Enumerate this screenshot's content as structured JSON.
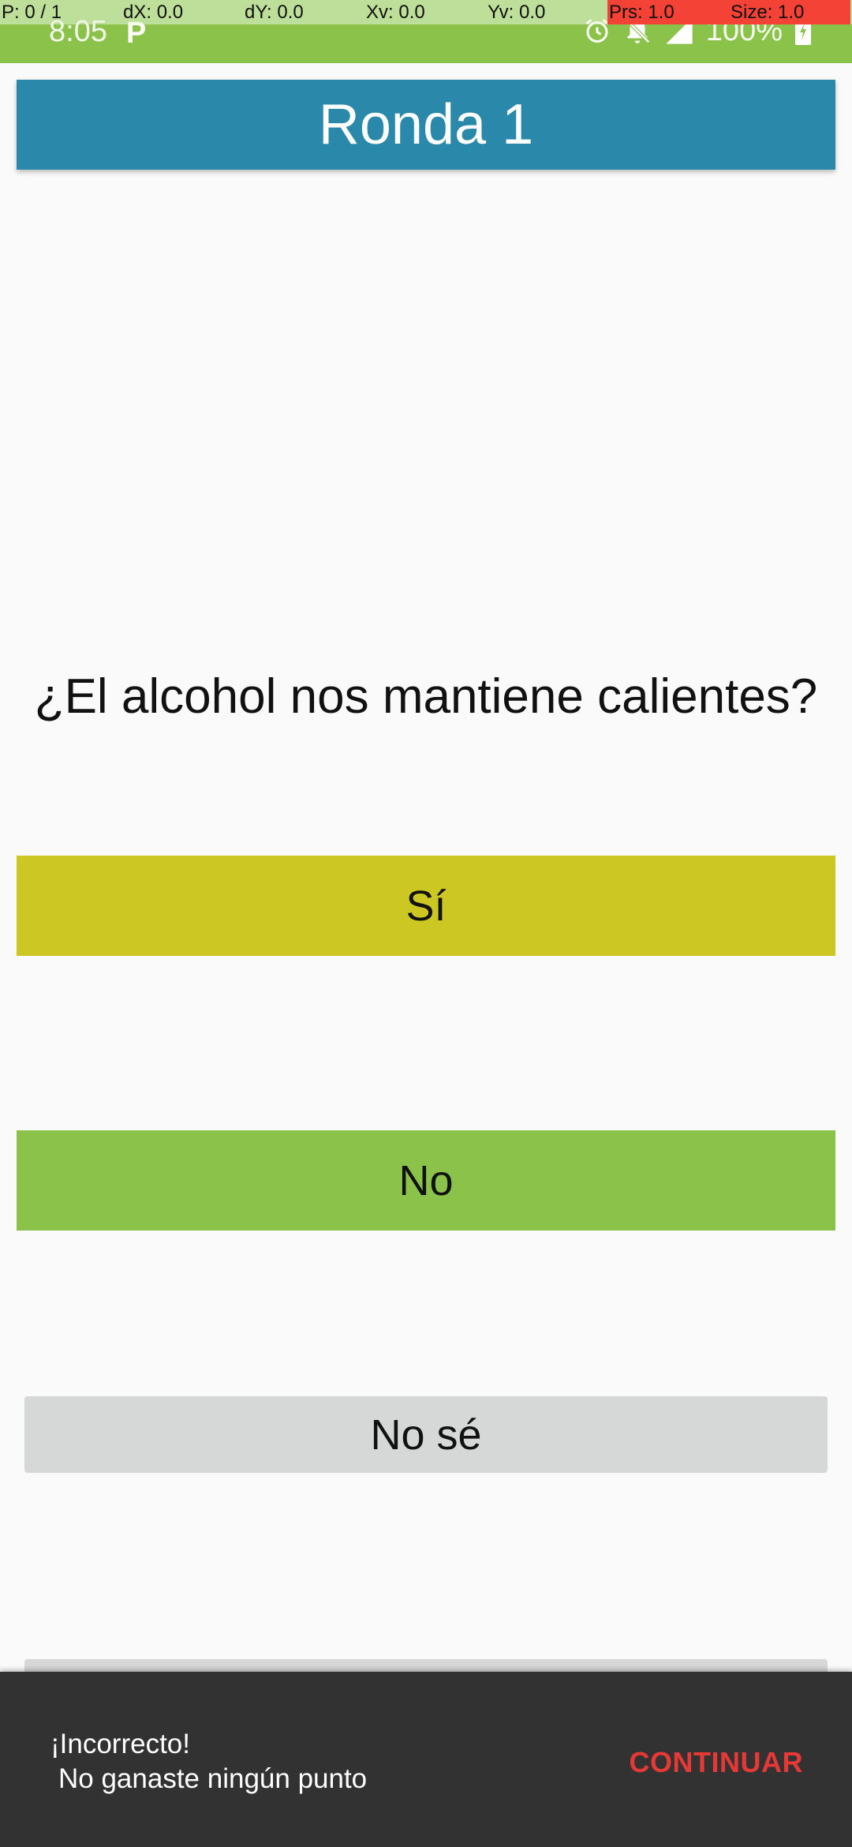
{
  "status_bar": {
    "time": "8:05",
    "app_icon_glyph": "P",
    "battery_text": "100%",
    "icons": [
      "alarm-icon",
      "muted-bell-icon",
      "signal-icon",
      "battery-charging-icon"
    ]
  },
  "debug_overlay": {
    "pointer": "P: 0 / 1",
    "dx": "dX: 0.0",
    "dy": "dY: 0.0",
    "xv": "Xv: 0.0",
    "yv": "Yv: 0.0",
    "prs": "Prs: 1.0",
    "size": "Size: 1.0"
  },
  "toolbar": {
    "title": "Ronda 1"
  },
  "question": {
    "text": "¿El alcohol nos mantiene calientes?"
  },
  "answers": {
    "si": "Sí",
    "no": "No",
    "nose": "No sé"
  },
  "snackbar": {
    "line1": "¡Incorrecto!",
    "line2": "No ganaste ningún punto",
    "action": "CONTINUAR"
  },
  "colors": {
    "status_bar": "#8bc34a",
    "toolbar": "#2a89aa",
    "answer_si": "#cdc724",
    "answer_no": "#8bc34a",
    "answer_nose": "#d6d7d7",
    "snackbar_bg": "#323232",
    "snackbar_action": "#e53935"
  }
}
